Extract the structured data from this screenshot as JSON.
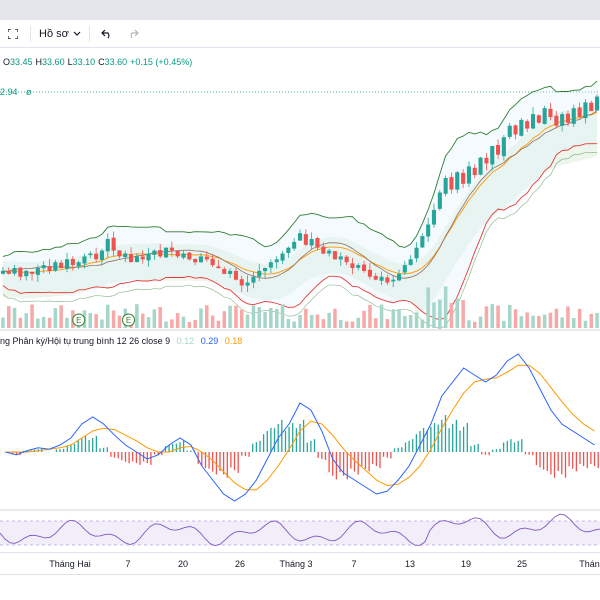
{
  "toolbar": {
    "fullscreen_icon": "fullscreen-icon",
    "profile_label": "Hồ sơ",
    "profile_chevron": "chevron-down-icon",
    "undo_icon": "undo-icon",
    "redo_icon": "redo-icon"
  },
  "legend": {
    "open_label": "O",
    "open_value": "33.45",
    "high_label": "H",
    "high_value": "33.60",
    "low_label": "L",
    "low_value": "33.10",
    "close_label": "C",
    "close_value": "33.60",
    "change_value": "+0.15 (+0.45%)"
  },
  "price_marker": {
    "text": "2.94",
    "symbol": "ø"
  },
  "macd": {
    "title": "ng Phân kỳ/Hội tụ trung bình 12 26 close 9",
    "hist_value": "0.12",
    "macd_value": "0.29",
    "signal_value": "0.18"
  },
  "xaxis": {
    "ticks": [
      "Tháng Hai",
      "7",
      "20",
      "26",
      "Tháng 3",
      "7",
      "13",
      "19",
      "25",
      "Tháng"
    ]
  },
  "colors": {
    "up": "#26a69a",
    "down": "#ef5350",
    "macd_line": "#2962ff",
    "signal_line": "#ff9800",
    "bb_line": "#2e7d32",
    "rsi_line": "#7e57c2"
  },
  "chart_data": {
    "type": "candlestick",
    "close_series": [
      32.2,
      32.1,
      32.3,
      32.0,
      32.2,
      32.1,
      32.3,
      32.4,
      32.2,
      32.5,
      32.3,
      32.6,
      32.4,
      32.5,
      32.7,
      32.8,
      32.6,
      32.9,
      33.3,
      32.9,
      32.7,
      32.8,
      32.5,
      32.7,
      32.6,
      32.8,
      32.9,
      32.7,
      33.0,
      32.9,
      32.7,
      32.8,
      32.6,
      32.5,
      32.7,
      32.6,
      32.4,
      32.3,
      32.1,
      32.2,
      31.9,
      31.7,
      31.8,
      32.0,
      32.2,
      32.3,
      32.5,
      32.6,
      32.8,
      33.0,
      33.2,
      33.5,
      33.1,
      33.3,
      33.0,
      32.8,
      32.9,
      32.6,
      32.7,
      32.5,
      32.3,
      32.4,
      32.2,
      32.0,
      31.9,
      32.0,
      31.8,
      31.9,
      32.1,
      32.4,
      32.6,
      33.0,
      33.4,
      33.8,
      34.3,
      34.9,
      35.4,
      35.0,
      35.6,
      35.2,
      35.8,
      35.5,
      36.1,
      35.9,
      36.5,
      36.2,
      36.8,
      37.2,
      36.9,
      37.4,
      37.1,
      37.6,
      37.3,
      37.8,
      37.5,
      37.2,
      37.6,
      37.3,
      37.8,
      37.5,
      38.0,
      37.7,
      38.2
    ],
    "macd_series": [
      0.0,
      -0.02,
      0.01,
      0.03,
      0.02,
      0.05,
      0.1,
      0.2,
      0.25,
      0.2,
      0.12,
      0.05,
      0.0,
      -0.05,
      -0.02,
      0.05,
      0.1,
      0.05,
      -0.1,
      -0.2,
      -0.3,
      -0.35,
      -0.3,
      -0.2,
      -0.05,
      0.1,
      0.2,
      0.35,
      0.3,
      0.15,
      -0.05,
      -0.15,
      -0.2,
      -0.25,
      -0.3,
      -0.28,
      -0.2,
      -0.1,
      0.05,
      0.2,
      0.4,
      0.5,
      0.6,
      0.55,
      0.5,
      0.55,
      0.65,
      0.7,
      0.6,
      0.45,
      0.3,
      0.2,
      0.15,
      0.1,
      0.05
    ],
    "signal_series": [
      0.0,
      0.0,
      0.0,
      0.01,
      0.02,
      0.03,
      0.05,
      0.1,
      0.15,
      0.17,
      0.16,
      0.12,
      0.08,
      0.03,
      0.0,
      0.0,
      0.03,
      0.04,
      0.0,
      -0.06,
      -0.14,
      -0.22,
      -0.27,
      -0.27,
      -0.2,
      -0.1,
      0.02,
      0.15,
      0.22,
      0.2,
      0.12,
      0.02,
      -0.06,
      -0.13,
      -0.2,
      -0.24,
      -0.23,
      -0.18,
      -0.1,
      0.02,
      0.17,
      0.3,
      0.42,
      0.5,
      0.52,
      0.53,
      0.57,
      0.62,
      0.62,
      0.56,
      0.46,
      0.36,
      0.27,
      0.2,
      0.15
    ],
    "x_ticks": [
      "Tháng Hai",
      "7",
      "20",
      "26",
      "Tháng 3",
      "7",
      "13",
      "19",
      "25",
      "Tháng"
    ]
  }
}
